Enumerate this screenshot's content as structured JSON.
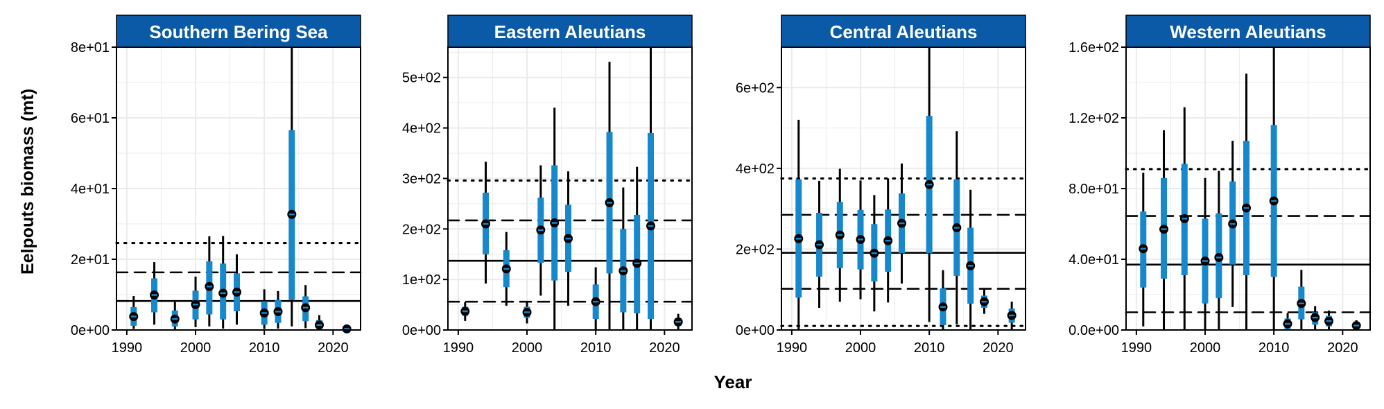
{
  "figure": {
    "xlabel": "Year",
    "ylabel": "Eelpouts biomass (mt)"
  },
  "colors": {
    "strip": "#0a5aa8",
    "bar": "#1888cc",
    "whisker": "#000000",
    "grid": "#ebebeb",
    "line": "#000000"
  },
  "chart_data": [
    {
      "type": "scatter",
      "title": "Southern Bering Sea",
      "xlabel": "Year",
      "ylabel": "Eelpouts biomass (mt)",
      "xlim": [
        1988.5,
        2024
      ],
      "ylim": [
        0,
        80
      ],
      "xticks": [
        1990,
        2000,
        2010,
        2020
      ],
      "xtick_labels": [
        "1990",
        "2000",
        "2010",
        "2020"
      ],
      "yticks": [
        0,
        20,
        40,
        60,
        80
      ],
      "ytick_labels": [
        "0e+00",
        "2e+01",
        "4e+01",
        "6e+01",
        "8e+01"
      ],
      "grid": true,
      "reference_lines": {
        "solid": 8.2,
        "dashed": 16.3,
        "dotted": 24.6
      },
      "points": [
        {
          "x": 1991,
          "y": 3.8,
          "lo50": 1.2,
          "hi50": 6.5,
          "lo95": 0.3,
          "hi95": 9.6
        },
        {
          "x": 1994,
          "y": 9.9,
          "lo50": 5.0,
          "hi50": 14.6,
          "lo95": 1.5,
          "hi95": 19.2
        },
        {
          "x": 1997,
          "y": 3.1,
          "lo50": 1.0,
          "hi50": 5.5,
          "lo95": 0.2,
          "hi95": 8.1
        },
        {
          "x": 2000,
          "y": 7.2,
          "lo50": 3.0,
          "hi50": 11.1,
          "lo95": 0.8,
          "hi95": 15.1
        },
        {
          "x": 2002,
          "y": 12.3,
          "lo50": 4.4,
          "hi50": 19.4,
          "lo95": 1.0,
          "hi95": 26.5
        },
        {
          "x": 2004,
          "y": 10.4,
          "lo50": 3.0,
          "hi50": 18.8,
          "lo95": 0.4,
          "hi95": 26.6
        },
        {
          "x": 2006,
          "y": 10.7,
          "lo50": 5.3,
          "hi50": 16.0,
          "lo95": 1.5,
          "hi95": 21.4
        },
        {
          "x": 2010,
          "y": 4.8,
          "lo50": 1.5,
          "hi50": 8.1,
          "lo95": 0.3,
          "hi95": 11.5
        },
        {
          "x": 2012,
          "y": 5.2,
          "lo50": 2.0,
          "hi50": 8.5,
          "lo95": 0.4,
          "hi95": 11.0
        },
        {
          "x": 2014,
          "y": 32.7,
          "lo50": 8.5,
          "hi50": 56.5,
          "lo95": 1.0,
          "hi95": 80.0
        },
        {
          "x": 2016,
          "y": 6.3,
          "lo50": 2.5,
          "hi50": 9.5,
          "lo95": 0.5,
          "hi95": 12.7
        },
        {
          "x": 2018,
          "y": 1.4,
          "lo50": 0.3,
          "hi50": 2.8,
          "lo95": 0.0,
          "hi95": 4.2
        },
        {
          "x": 2022,
          "y": 0.3,
          "lo50": 0.0,
          "hi50": 0.6,
          "lo95": 0.0,
          "hi95": 0.9
        }
      ]
    },
    {
      "type": "scatter",
      "title": "Eastern Aleutians",
      "xlabel": "Year",
      "ylabel": "Eelpouts biomass (mt)",
      "xlim": [
        1988.5,
        2024
      ],
      "ylim": [
        0,
        560
      ],
      "xticks": [
        1990,
        2000,
        2010,
        2020
      ],
      "xtick_labels": [
        "1990",
        "2000",
        "2010",
        "2020"
      ],
      "yticks": [
        0,
        100,
        200,
        300,
        400,
        500
      ],
      "ytick_labels": [
        "0e+00",
        "1e+02",
        "2e+02",
        "3e+02",
        "4e+02",
        "5e+02"
      ],
      "grid": true,
      "reference_lines": {
        "solid": 137,
        "dashed": 217,
        "dotted": 296,
        "dashed_low": 56
      },
      "points": [
        {
          "x": 1991,
          "y": 37,
          "lo50": 28,
          "hi50": 46,
          "lo95": 18,
          "hi95": 55
        },
        {
          "x": 1994,
          "y": 210,
          "lo50": 150,
          "hi50": 272,
          "lo95": 92,
          "hi95": 333
        },
        {
          "x": 1997,
          "y": 121,
          "lo50": 85,
          "hi50": 158,
          "lo95": 48,
          "hi95": 194
        },
        {
          "x": 2000,
          "y": 35,
          "lo50": 24,
          "hi50": 46,
          "lo95": 13,
          "hi95": 57
        },
        {
          "x": 2002,
          "y": 198,
          "lo50": 133,
          "hi50": 262,
          "lo95": 68,
          "hi95": 326
        },
        {
          "x": 2004,
          "y": 212,
          "lo50": 98,
          "hi50": 326,
          "lo95": 0,
          "hi95": 440
        },
        {
          "x": 2006,
          "y": 181,
          "lo50": 115,
          "hi50": 248,
          "lo95": 48,
          "hi95": 314
        },
        {
          "x": 2010,
          "y": 56,
          "lo50": 22,
          "hi50": 90,
          "lo95": 0,
          "hi95": 124
        },
        {
          "x": 2012,
          "y": 252,
          "lo50": 112,
          "hi50": 392,
          "lo95": 0,
          "hi95": 531
        },
        {
          "x": 2014,
          "y": 117,
          "lo50": 35,
          "hi50": 200,
          "lo95": 0,
          "hi95": 282
        },
        {
          "x": 2016,
          "y": 132,
          "lo50": 33,
          "hi50": 228,
          "lo95": 0,
          "hi95": 323
        },
        {
          "x": 2018,
          "y": 206,
          "lo50": 22,
          "hi50": 390,
          "lo95": 0,
          "hi95": 560
        },
        {
          "x": 2022,
          "y": 16,
          "lo50": 8,
          "hi50": 24,
          "lo95": 0,
          "hi95": 32
        }
      ]
    },
    {
      "type": "scatter",
      "title": "Central Aleutians",
      "xlabel": "Year",
      "ylabel": "Eelpouts biomass (mt)",
      "xlim": [
        1988.5,
        2024
      ],
      "ylim": [
        0,
        700
      ],
      "xticks": [
        1990,
        2000,
        2010,
        2020
      ],
      "xtick_labels": [
        "1990",
        "2000",
        "2010",
        "2020"
      ],
      "yticks": [
        0,
        200,
        400,
        600
      ],
      "ytick_labels": [
        "0e+00",
        "2e+02",
        "4e+02",
        "6e+02"
      ],
      "grid": true,
      "reference_lines": {
        "solid": 191,
        "dashed": 285,
        "dotted": 375,
        "dashed_low": 102,
        "dotted_low": 10
      },
      "points": [
        {
          "x": 1991,
          "y": 226,
          "lo50": 80,
          "hi50": 373,
          "lo95": 0,
          "hi95": 520
        },
        {
          "x": 1994,
          "y": 211,
          "lo50": 132,
          "hi50": 290,
          "lo95": 55,
          "hi95": 369
        },
        {
          "x": 1997,
          "y": 235,
          "lo50": 153,
          "hi50": 317,
          "lo95": 70,
          "hi95": 399
        },
        {
          "x": 2000,
          "y": 224,
          "lo50": 150,
          "hi50": 297,
          "lo95": 76,
          "hi95": 370
        },
        {
          "x": 2002,
          "y": 190,
          "lo50": 120,
          "hi50": 262,
          "lo95": 46,
          "hi95": 334
        },
        {
          "x": 2004,
          "y": 221,
          "lo50": 144,
          "hi50": 298,
          "lo95": 68,
          "hi95": 375
        },
        {
          "x": 2006,
          "y": 264,
          "lo50": 190,
          "hi50": 338,
          "lo95": 115,
          "hi95": 412
        },
        {
          "x": 2010,
          "y": 360,
          "lo50": 190,
          "hi50": 530,
          "lo95": 20,
          "hi95": 700
        },
        {
          "x": 2012,
          "y": 57,
          "lo50": 12,
          "hi50": 103,
          "lo95": 0,
          "hi95": 148
        },
        {
          "x": 2014,
          "y": 253,
          "lo50": 134,
          "hi50": 373,
          "lo95": 14,
          "hi95": 492
        },
        {
          "x": 2016,
          "y": 159,
          "lo50": 65,
          "hi50": 253,
          "lo95": 0,
          "hi95": 347
        },
        {
          "x": 2018,
          "y": 70,
          "lo50": 55,
          "hi50": 85,
          "lo95": 40,
          "hi95": 100
        },
        {
          "x": 2022,
          "y": 36,
          "lo50": 18,
          "hi50": 53,
          "lo95": 0,
          "hi95": 70
        }
      ]
    },
    {
      "type": "scatter",
      "title": "Western Aleutians",
      "xlabel": "Year",
      "ylabel": "Eelpouts biomass (mt)",
      "xlim": [
        1988.5,
        2024
      ],
      "ylim": [
        0,
        160
      ],
      "xticks": [
        1990,
        2000,
        2010,
        2020
      ],
      "xtick_labels": [
        "1990",
        "2000",
        "2010",
        "2020"
      ],
      "yticks": [
        0,
        40,
        80,
        120,
        160
      ],
      "ytick_labels": [
        "0.0e+00",
        "4.0e+01",
        "8.0e+01",
        "1.2e+02",
        "1.6e+02"
      ],
      "grid": true,
      "reference_lines": {
        "solid": 37,
        "dashed": 64.5,
        "dotted": 91,
        "dashed_low": 10
      },
      "points": [
        {
          "x": 1991,
          "y": 46,
          "lo50": 24,
          "hi50": 67,
          "lo95": 2,
          "hi95": 89
        },
        {
          "x": 1994,
          "y": 57,
          "lo50": 29,
          "hi50": 86,
          "lo95": 0,
          "hi95": 113
        },
        {
          "x": 1997,
          "y": 63,
          "lo50": 31,
          "hi50": 94,
          "lo95": 0,
          "hi95": 126
        },
        {
          "x": 2000,
          "y": 39,
          "lo50": 15,
          "hi50": 63,
          "lo95": 0,
          "hi95": 86
        },
        {
          "x": 2002,
          "y": 41,
          "lo50": 18,
          "hi50": 66,
          "lo95": 0,
          "hi95": 90
        },
        {
          "x": 2004,
          "y": 60,
          "lo50": 37,
          "hi50": 84,
          "lo95": 13,
          "hi95": 107
        },
        {
          "x": 2006,
          "y": 69,
          "lo50": 31,
          "hi50": 107,
          "lo95": 0,
          "hi95": 145
        },
        {
          "x": 2010,
          "y": 73,
          "lo50": 30,
          "hi50": 116,
          "lo95": 0,
          "hi95": 160
        },
        {
          "x": 2012,
          "y": 3.5,
          "lo50": 0.5,
          "hi50": 6.5,
          "lo95": 0,
          "hi95": 9.5
        },
        {
          "x": 2014,
          "y": 15,
          "lo50": 6,
          "hi50": 24.5,
          "lo95": 0,
          "hi95": 34
        },
        {
          "x": 2016,
          "y": 7,
          "lo50": 3,
          "hi50": 10,
          "lo95": 0,
          "hi95": 13.5
        },
        {
          "x": 2018,
          "y": 5,
          "lo50": 2,
          "hi50": 8,
          "lo95": 0,
          "hi95": 11
        },
        {
          "x": 2022,
          "y": 2.5,
          "lo50": 1,
          "hi50": 4,
          "lo95": 0,
          "hi95": 5.5
        }
      ]
    }
  ]
}
